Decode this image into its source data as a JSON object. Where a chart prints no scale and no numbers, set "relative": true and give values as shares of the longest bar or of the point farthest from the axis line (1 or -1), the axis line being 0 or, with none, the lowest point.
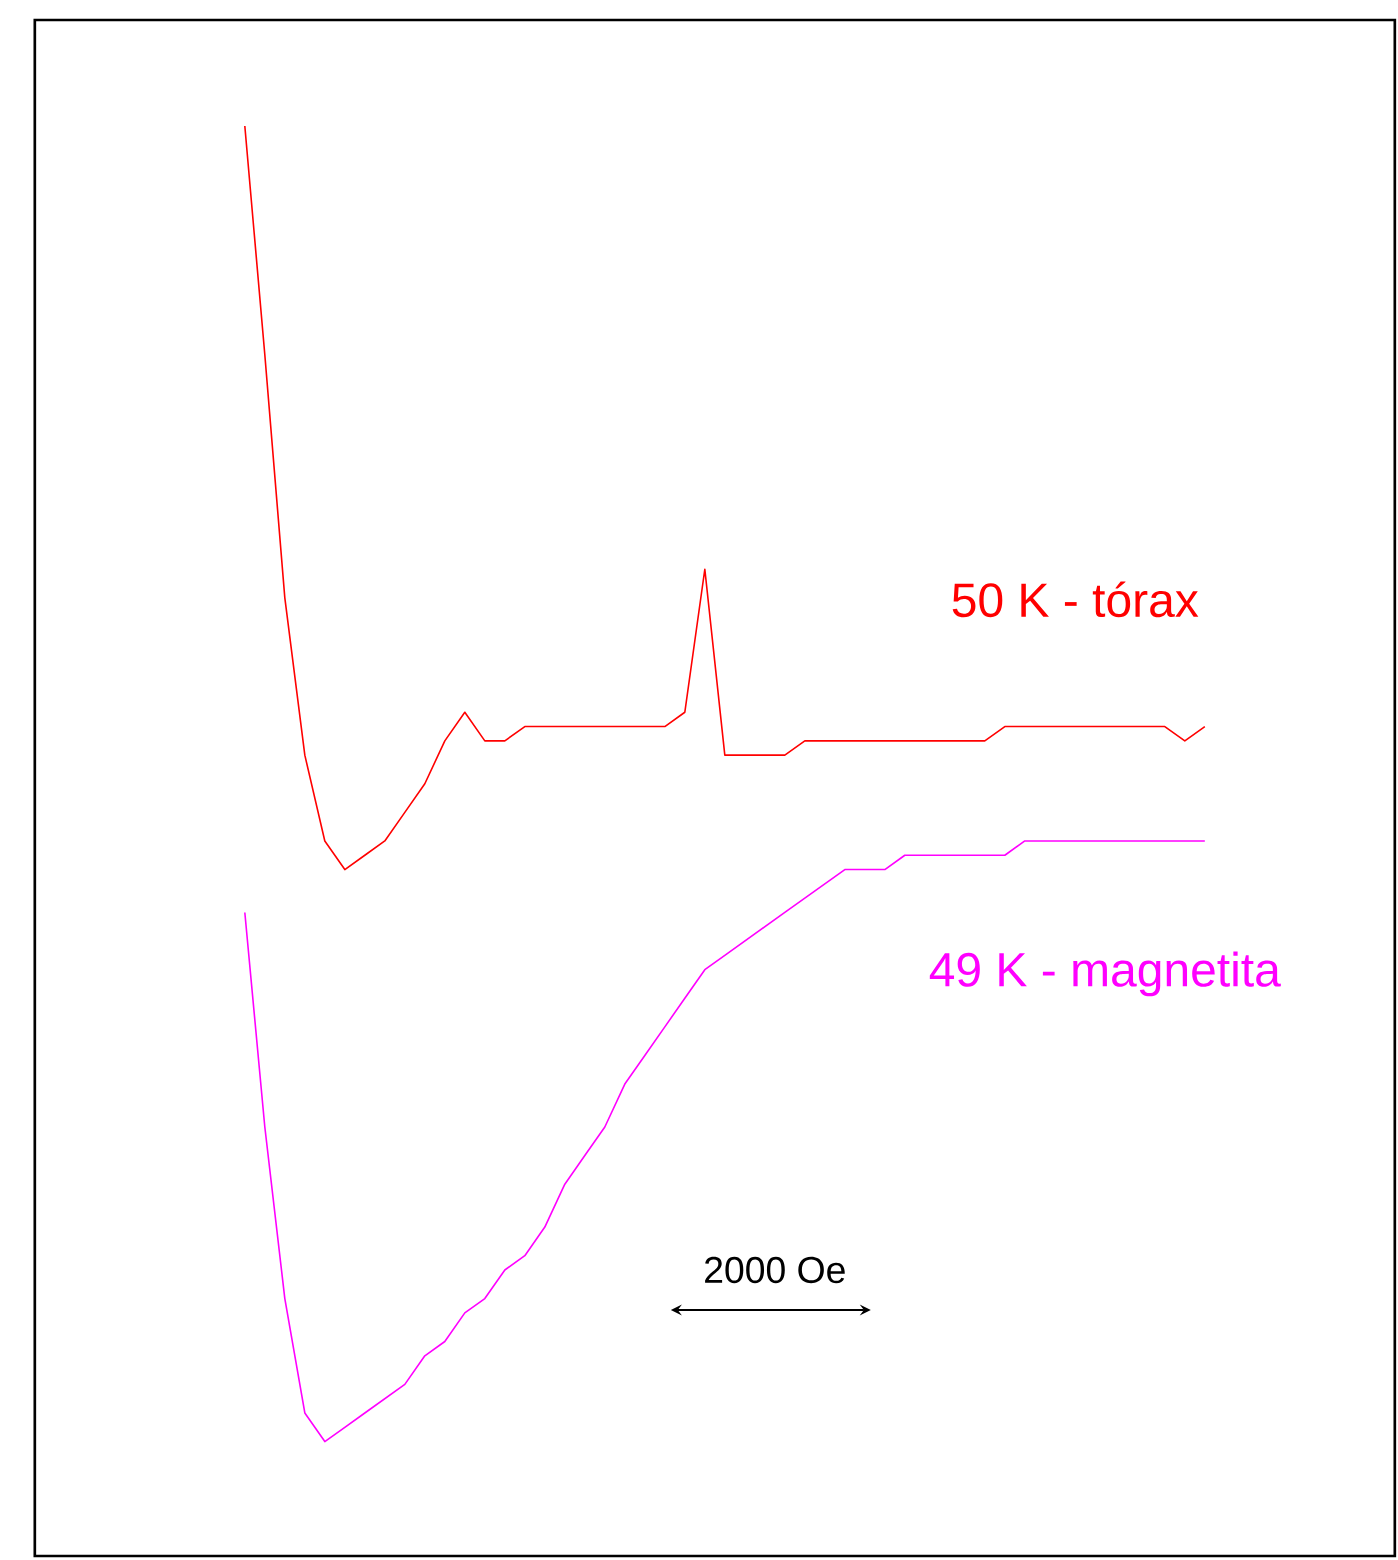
{
  "chart_data": {
    "type": "line",
    "relative": true,
    "categories": [
      null,
      null,
      null,
      null,
      null,
      null,
      null,
      null,
      null,
      null,
      null,
      null,
      null,
      null,
      null,
      null,
      null,
      null,
      null,
      null,
      null,
      null,
      null,
      null,
      null,
      null,
      null,
      null,
      null,
      null,
      null,
      null,
      null,
      null,
      null,
      null,
      null,
      null,
      null,
      null,
      null,
      null,
      null,
      null,
      null,
      null,
      null,
      null,
      null
    ],
    "series": [
      {
        "name": "50 K - tórax",
        "color": "#ff0000",
        "values": [
          1.0,
          0.84,
          0.67,
          0.56,
          0.5,
          0.48,
          0.49,
          0.5,
          0.52,
          0.54,
          0.57,
          0.59,
          0.57,
          0.57,
          0.58,
          0.58,
          0.58,
          0.58,
          0.58,
          0.58,
          0.58,
          0.58,
          0.59,
          0.69,
          0.56,
          0.56,
          0.56,
          0.56,
          0.57,
          0.57,
          0.57,
          0.57,
          0.57,
          0.57,
          0.57,
          0.57,
          0.57,
          0.57,
          0.58,
          0.58,
          0.58,
          0.58,
          0.58,
          0.58,
          0.58,
          0.58,
          0.58,
          0.57,
          0.58
        ]
      },
      {
        "name": "49 K - magnetita",
        "color": "#ff00ff",
        "values": [
          0.45,
          0.3,
          0.18,
          0.1,
          0.08,
          0.09,
          0.1,
          0.11,
          0.12,
          0.14,
          0.15,
          0.17,
          0.18,
          0.2,
          0.21,
          0.23,
          0.26,
          0.28,
          0.3,
          0.33,
          0.35,
          0.37,
          0.39,
          0.41,
          0.42,
          0.43,
          0.44,
          0.45,
          0.46,
          0.47,
          0.48,
          0.48,
          0.48,
          0.49,
          0.49,
          0.49,
          0.49,
          0.49,
          0.49,
          0.5,
          0.5,
          0.5,
          0.5,
          0.5,
          0.5,
          0.5,
          0.5,
          0.5,
          0.5
        ]
      }
    ],
    "annotations": [
      "2000 Oe"
    ]
  }
}
